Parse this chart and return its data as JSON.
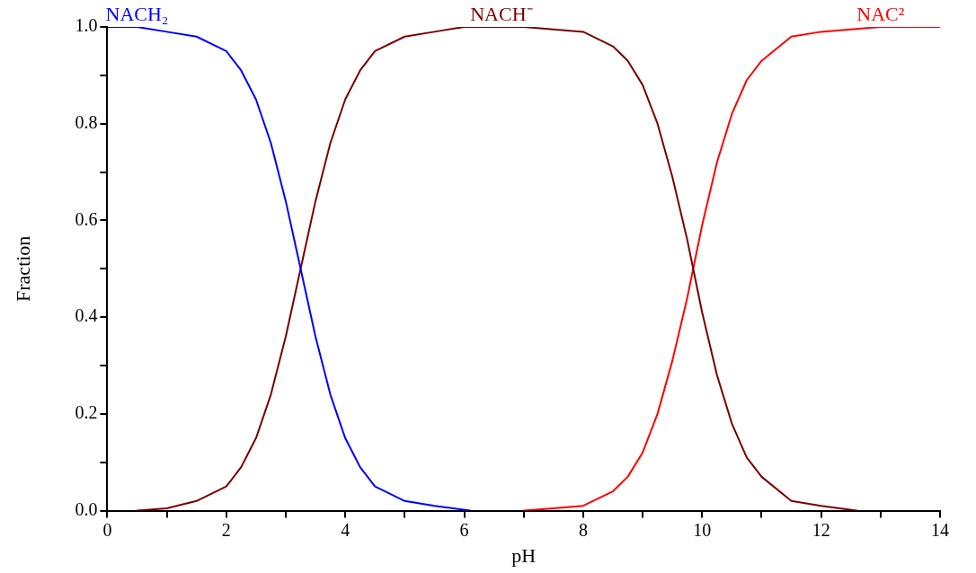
{
  "chart_data": {
    "type": "line",
    "xlabel": "pH",
    "ylabel": "Fraction",
    "xlim": [
      0,
      14
    ],
    "xticks": [
      0,
      {
        "value": 1,
        "label": null
      },
      2,
      {
        "value": 3,
        "label": null
      },
      4,
      {
        "value": 5,
        "label": null
      },
      6,
      {
        "value": 7,
        "label": null
      },
      8,
      {
        "value": 9,
        "label": null
      },
      10,
      {
        "value": 11,
        "label": null
      },
      12,
      {
        "value": 13,
        "label": null
      },
      14
    ],
    "ylim": [
      0,
      1
    ],
    "yticks": [
      {
        "value": 0,
        "label": "0.0"
      },
      {
        "value": 0.1,
        "label": null
      },
      {
        "value": 0.2,
        "label": "0.2"
      },
      {
        "value": 0.3,
        "label": null
      },
      {
        "value": 0.4,
        "label": "0.4"
      },
      {
        "value": 0.5,
        "label": null
      },
      {
        "value": 0.6,
        "label": "0.6"
      },
      {
        "value": 0.7,
        "label": null
      },
      {
        "value": 0.8,
        "label": "0.8"
      },
      {
        "value": 0.9,
        "label": null
      },
      {
        "value": 1,
        "label": "1.0"
      }
    ],
    "grid": false,
    "legend": false,
    "marker": "none",
    "line_style": "solid",
    "series": [
      {
        "name": "NACH₂",
        "color": "#0000ff",
        "x": [
          0,
          0.5,
          1,
          1.5,
          2,
          2.25,
          2.5,
          2.75,
          3,
          3.25,
          3.5,
          3.75,
          4,
          4.25,
          4.5,
          5,
          5.5,
          6.1
        ],
        "values": [
          1,
          1,
          0.99,
          0.98,
          0.95,
          0.91,
          0.85,
          0.76,
          0.64,
          0.5,
          0.36,
          0.24,
          0.15,
          0.09,
          0.05,
          0.02,
          0.01,
          0
        ]
      },
      {
        "name": "NACH⁻",
        "color": "#7a0000",
        "x": [
          0.5,
          1,
          1.5,
          2,
          2.25,
          2.5,
          2.75,
          3,
          3.25,
          3.5,
          3.75,
          4,
          4.25,
          4.5,
          5,
          5.5,
          6,
          7,
          8,
          8.5,
          8.75,
          9,
          9.25,
          9.5,
          9.75,
          9.85,
          10,
          10.25,
          10.5,
          10.75,
          11,
          11.5,
          12,
          12.6
        ],
        "values": [
          0,
          0.005,
          0.02,
          0.05,
          0.09,
          0.15,
          0.24,
          0.36,
          0.5,
          0.64,
          0.76,
          0.85,
          0.91,
          0.95,
          0.98,
          0.99,
          1,
          1,
          0.99,
          0.96,
          0.93,
          0.88,
          0.8,
          0.69,
          0.56,
          0.5,
          0.41,
          0.28,
          0.18,
          0.11,
          0.07,
          0.02,
          0.01,
          0
        ]
      },
      {
        "name": "NAC²",
        "color": "#ff0000",
        "x": [
          7,
          7.5,
          8,
          8.5,
          8.75,
          9,
          9.25,
          9.5,
          9.75,
          9.85,
          10,
          10.25,
          10.5,
          10.75,
          11,
          11.5,
          12,
          13,
          14
        ],
        "values": [
          0,
          0.005,
          0.01,
          0.04,
          0.07,
          0.12,
          0.2,
          0.31,
          0.44,
          0.5,
          0.59,
          0.72,
          0.82,
          0.89,
          0.93,
          0.98,
          0.99,
          1,
          1
        ]
      }
    ]
  }
}
